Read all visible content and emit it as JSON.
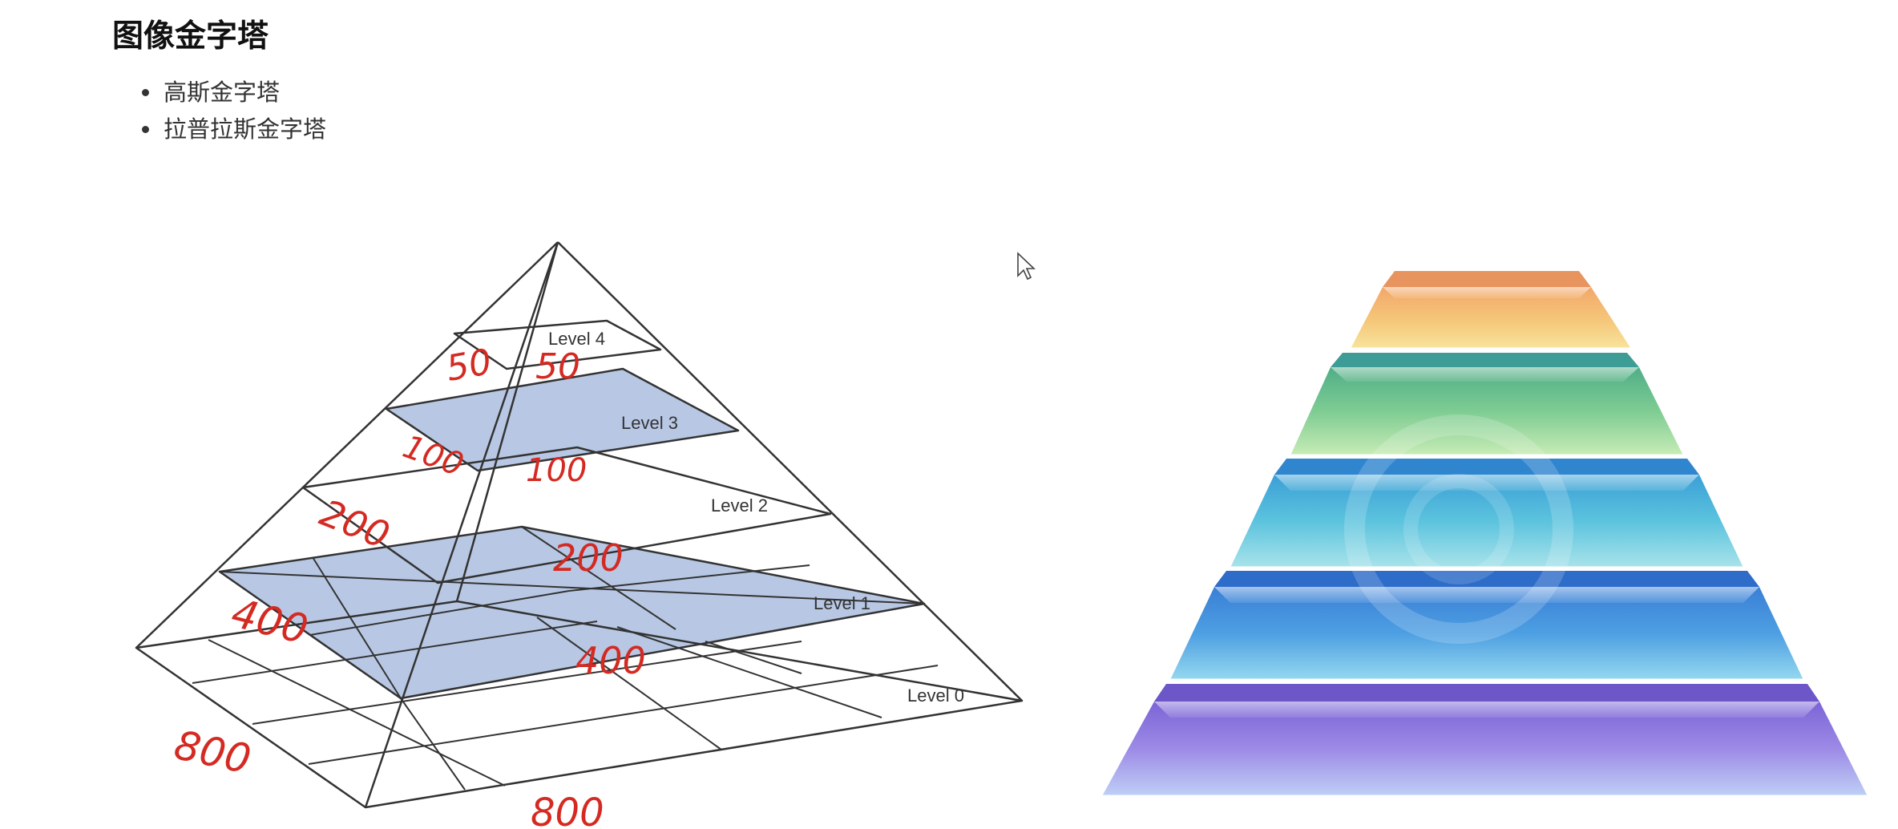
{
  "heading": "图像金字塔",
  "bullets": [
    "高斯金字塔",
    "拉普拉斯金字塔"
  ],
  "diagram": {
    "level_labels": [
      "Level 4",
      "Level 3",
      "Level 2",
      "Level 1",
      "Level 0"
    ],
    "annotations": [
      "50",
      "50",
      "100",
      "100",
      "200",
      "200",
      "400",
      "400",
      "800",
      "800"
    ],
    "highlight_color": "#b8c8e4",
    "annotation_color": "#d42a22"
  },
  "layers": {
    "colors": [
      "#f2a76a",
      "#7ecc93",
      "#5cc3de",
      "#4d9fe2",
      "#9d7fe0"
    ]
  }
}
